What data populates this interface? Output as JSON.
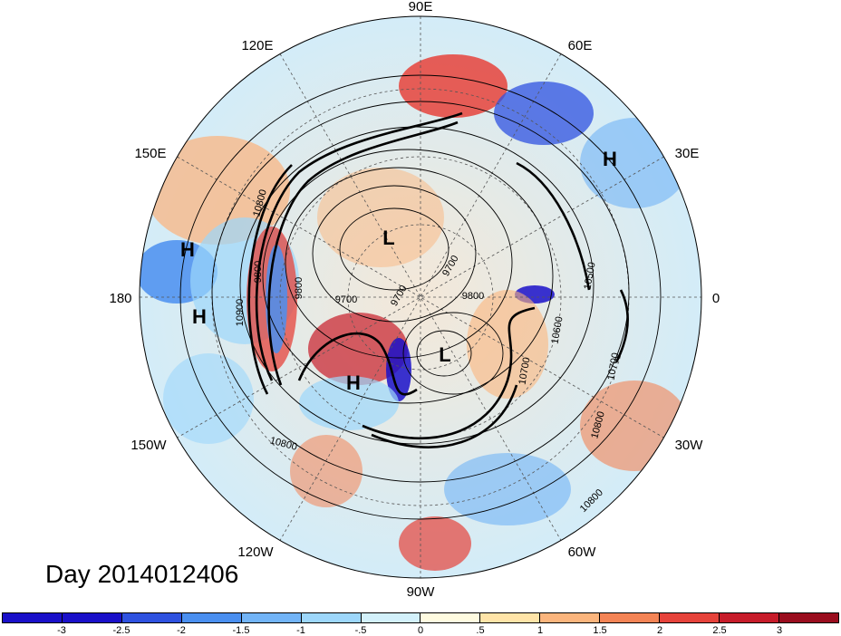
{
  "title": "Day 2014012406",
  "longitude_labels": {
    "lon_90e": "90E",
    "lon_60e": "60E",
    "lon_30e": "30E",
    "lon_0": "0",
    "lon_30w": "30W",
    "lon_60w": "60W",
    "lon_90w": "90W",
    "lon_120w": "120W",
    "lon_150w": "150W",
    "lon_180": "180",
    "lon_150e": "150E",
    "lon_120e": "120E"
  },
  "pressure_centers": [
    {
      "type": "H",
      "label": "H"
    },
    {
      "type": "H",
      "label": "H"
    },
    {
      "type": "H",
      "label": "H"
    },
    {
      "type": "H",
      "label": "H"
    },
    {
      "type": "L",
      "label": "L"
    },
    {
      "type": "L",
      "label": "L"
    }
  ],
  "contour_labels": [
    "9700",
    "9700",
    "9800",
    "9800",
    "9800",
    "9700",
    "10500",
    "10600",
    "10700",
    "10700",
    "10800",
    "10800",
    "10900",
    "10800",
    "10800"
  ],
  "colorbar": {
    "colors": [
      "#1a10c9",
      "#2f52e0",
      "#4a8ff0",
      "#72b4f7",
      "#9dd7fb",
      "#d3f1fb",
      "#fffbe0",
      "#ffe4a8",
      "#fbb57d",
      "#f48455",
      "#e6433b",
      "#c71c2a",
      "#9a0d1e"
    ],
    "tick_labels": [
      "-3",
      "-2.5",
      "-2",
      "-1.5",
      "-1",
      "-.5",
      "0",
      ".5",
      "1",
      "1.5",
      "2",
      "2.5",
      "3"
    ]
  }
}
